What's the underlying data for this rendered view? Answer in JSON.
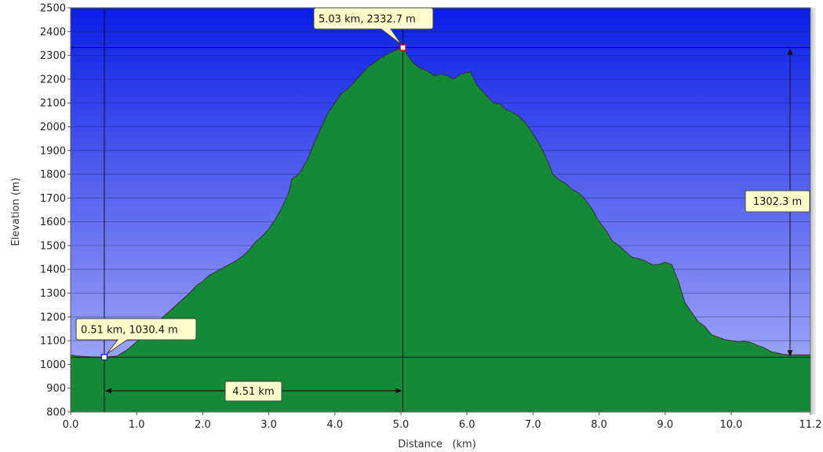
{
  "chart_data": {
    "type": "area",
    "xlabel": "Distance   (km)",
    "ylabel": "Elevation (m)",
    "xlim": [
      0,
      11.2
    ],
    "ylim": [
      800,
      2500
    ],
    "xticks": [
      "0.0",
      "1.0",
      "2.0",
      "3.0",
      "4.0",
      "5.0",
      "6.0",
      "7.0",
      "8.0",
      "9.0",
      "10.0",
      "11.2"
    ],
    "yticks": [
      "800",
      "900",
      "1000",
      "1100",
      "1200",
      "1300",
      "1400",
      "1500",
      "1600",
      "1700",
      "1800",
      "1900",
      "2000",
      "2100",
      "2200",
      "2300",
      "2400",
      "2500"
    ],
    "grid": "horizontal",
    "colors": {
      "sky_top": "#0a1ee6",
      "sky_bottom": "#b3b7fa",
      "fill_light": "#22b34a",
      "fill_dark": "#0c5f22",
      "outline": "#333333"
    },
    "series": [
      {
        "x": [
          0.0,
          0.1,
          0.3,
          0.51,
          0.7,
          0.85,
          1.0,
          1.2,
          1.4,
          1.6,
          1.8,
          1.9,
          2.0,
          2.1,
          2.2,
          2.3,
          2.4,
          2.5,
          2.6,
          2.7,
          2.8,
          2.9,
          3.0,
          3.1,
          3.2,
          3.3,
          3.35,
          3.45,
          3.5,
          3.6,
          3.7,
          3.8,
          3.9,
          4.0,
          4.1,
          4.2,
          4.3,
          4.4,
          4.5,
          4.6,
          4.7,
          4.8,
          4.9,
          5.03,
          5.1,
          5.2,
          5.3,
          5.4,
          5.5,
          5.6,
          5.7,
          5.8,
          5.9,
          6.0,
          6.05,
          6.15,
          6.3,
          6.4,
          6.5,
          6.6,
          6.7,
          6.8,
          6.9,
          7.0,
          7.1,
          7.2,
          7.3,
          7.4,
          7.5,
          7.6,
          7.7,
          7.8,
          7.9,
          8.0,
          8.1,
          8.2,
          8.3,
          8.4,
          8.5,
          8.6,
          8.7,
          8.8,
          8.9,
          9.0,
          9.1,
          9.2,
          9.3,
          9.4,
          9.5,
          9.6,
          9.7,
          9.8,
          9.9,
          10.0,
          10.1,
          10.2,
          10.3,
          10.4,
          10.5,
          10.6,
          10.7,
          10.8,
          10.9,
          11.0,
          11.1,
          11.2
        ],
        "y": [
          1040,
          1035,
          1032,
          1030.4,
          1035,
          1060,
          1095,
          1150,
          1200,
          1250,
          1300,
          1330,
          1350,
          1375,
          1390,
          1405,
          1420,
          1435,
          1455,
          1480,
          1515,
          1540,
          1570,
          1610,
          1660,
          1720,
          1780,
          1800,
          1820,
          1870,
          1940,
          2000,
          2060,
          2100,
          2140,
          2160,
          2190,
          2220,
          2250,
          2270,
          2290,
          2305,
          2320,
          2332.7,
          2300,
          2265,
          2245,
          2235,
          2215,
          2220,
          2215,
          2200,
          2220,
          2228,
          2230,
          2175,
          2130,
          2100,
          2095,
          2070,
          2060,
          2040,
          2010,
          1970,
          1925,
          1870,
          1800,
          1775,
          1760,
          1735,
          1720,
          1690,
          1650,
          1600,
          1565,
          1520,
          1500,
          1475,
          1450,
          1445,
          1435,
          1420,
          1420,
          1430,
          1420,
          1350,
          1260,
          1220,
          1180,
          1160,
          1125,
          1115,
          1105,
          1100,
          1095,
          1098,
          1092,
          1080,
          1070,
          1055,
          1048,
          1042,
          1040,
          1040,
          1040,
          1040
        ]
      }
    ],
    "annotations": [
      {
        "label": "0.51 km, 1030.4 m",
        "x": 0.51,
        "y": 1030.4
      },
      {
        "label": "5.03 km, 2332.7 m",
        "x": 5.03,
        "y": 2332.7
      },
      {
        "label": "4.51 km",
        "type": "horizontal-span"
      },
      {
        "label": "1302.3 m",
        "type": "vertical-span"
      }
    ]
  }
}
